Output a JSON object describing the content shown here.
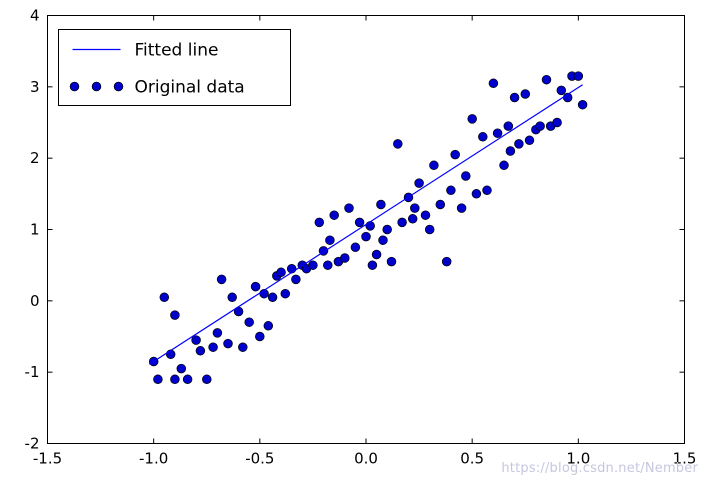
{
  "watermark": "https://blog.csdn.net/Nember",
  "chart_data": {
    "type": "scatter",
    "title": "",
    "xlabel": "",
    "ylabel": "",
    "xlim": [
      -1.5,
      1.5
    ],
    "ylim": [
      -2,
      4
    ],
    "grid": false,
    "xticks": {
      "values": [
        -1.5,
        -1.0,
        -0.5,
        0.0,
        0.5,
        1.0,
        1.5
      ],
      "labels": [
        "-1.5",
        "-1.0",
        "-0.5",
        "0.0",
        "0.5",
        "1.0",
        "1.5"
      ]
    },
    "yticks": {
      "values": [
        -2,
        -1,
        0,
        1,
        2,
        3,
        4
      ],
      "labels": [
        "-2",
        "-1",
        "0",
        "1",
        "2",
        "3",
        "4"
      ]
    },
    "legend": {
      "position": "upper left",
      "entries": [
        {
          "label": "Fitted line",
          "marker": "line"
        },
        {
          "label": "Original data",
          "marker": "dots"
        }
      ]
    },
    "colors": {
      "line": "#0000ff",
      "marker_fill": "#0000cc",
      "marker_edge": "#000000",
      "axis": "#000000",
      "legend_border": "#000000",
      "legend_bg": "#ffffff",
      "watermark": "#c6c6e0"
    },
    "series": [
      {
        "name": "Fitted line",
        "type": "line",
        "x": [
          -1.02,
          1.02
        ],
        "y": [
          -0.89,
          3.03
        ]
      },
      {
        "name": "Original data",
        "type": "scatter",
        "points": [
          [
            -1.0,
            -0.85
          ],
          [
            -0.98,
            -1.1
          ],
          [
            -0.95,
            0.05
          ],
          [
            -0.92,
            -0.75
          ],
          [
            -0.9,
            -0.2
          ],
          [
            -0.9,
            -1.1
          ],
          [
            -0.87,
            -0.95
          ],
          [
            -0.84,
            -1.1
          ],
          [
            -0.8,
            -0.55
          ],
          [
            -0.78,
            -0.7
          ],
          [
            -0.75,
            -1.1
          ],
          [
            -0.72,
            -0.65
          ],
          [
            -0.7,
            -0.45
          ],
          [
            -0.68,
            0.3
          ],
          [
            -0.65,
            -0.6
          ],
          [
            -0.63,
            0.05
          ],
          [
            -0.6,
            -0.15
          ],
          [
            -0.58,
            -0.65
          ],
          [
            -0.55,
            -0.3
          ],
          [
            -0.52,
            0.2
          ],
          [
            -0.5,
            -0.5
          ],
          [
            -0.48,
            0.1
          ],
          [
            -0.46,
            -0.35
          ],
          [
            -0.44,
            0.05
          ],
          [
            -0.42,
            0.35
          ],
          [
            -0.4,
            0.4
          ],
          [
            -0.38,
            0.1
          ],
          [
            -0.35,
            0.45
          ],
          [
            -0.33,
            0.3
          ],
          [
            -0.3,
            0.5
          ],
          [
            -0.28,
            0.45
          ],
          [
            -0.25,
            0.5
          ],
          [
            -0.22,
            1.1
          ],
          [
            -0.2,
            0.7
          ],
          [
            -0.18,
            0.5
          ],
          [
            -0.17,
            0.85
          ],
          [
            -0.15,
            1.2
          ],
          [
            -0.13,
            0.55
          ],
          [
            -0.1,
            0.6
          ],
          [
            -0.08,
            1.3
          ],
          [
            -0.05,
            0.75
          ],
          [
            -0.03,
            1.1
          ],
          [
            0.0,
            0.9
          ],
          [
            0.02,
            1.05
          ],
          [
            0.03,
            0.5
          ],
          [
            0.05,
            0.65
          ],
          [
            0.07,
            1.35
          ],
          [
            0.08,
            0.85
          ],
          [
            0.1,
            1.0
          ],
          [
            0.12,
            0.55
          ],
          [
            0.15,
            2.2
          ],
          [
            0.17,
            1.1
          ],
          [
            0.2,
            1.45
          ],
          [
            0.22,
            1.15
          ],
          [
            0.23,
            1.3
          ],
          [
            0.25,
            1.65
          ],
          [
            0.28,
            1.2
          ],
          [
            0.3,
            1.0
          ],
          [
            0.32,
            1.9
          ],
          [
            0.35,
            1.35
          ],
          [
            0.38,
            0.55
          ],
          [
            0.4,
            1.55
          ],
          [
            0.42,
            2.05
          ],
          [
            0.45,
            1.3
          ],
          [
            0.47,
            1.75
          ],
          [
            0.5,
            2.55
          ],
          [
            0.52,
            1.5
          ],
          [
            0.55,
            2.3
          ],
          [
            0.57,
            1.55
          ],
          [
            0.6,
            3.05
          ],
          [
            0.62,
            2.35
          ],
          [
            0.65,
            1.9
          ],
          [
            0.67,
            2.45
          ],
          [
            0.68,
            2.1
          ],
          [
            0.7,
            2.85
          ],
          [
            0.72,
            2.2
          ],
          [
            0.75,
            2.9
          ],
          [
            0.77,
            2.25
          ],
          [
            0.8,
            2.4
          ],
          [
            0.82,
            2.45
          ],
          [
            0.85,
            3.1
          ],
          [
            0.87,
            2.45
          ],
          [
            0.9,
            2.5
          ],
          [
            0.92,
            2.95
          ],
          [
            0.95,
            2.85
          ],
          [
            0.97,
            3.15
          ],
          [
            1.0,
            3.15
          ],
          [
            1.02,
            2.75
          ]
        ]
      }
    ]
  }
}
